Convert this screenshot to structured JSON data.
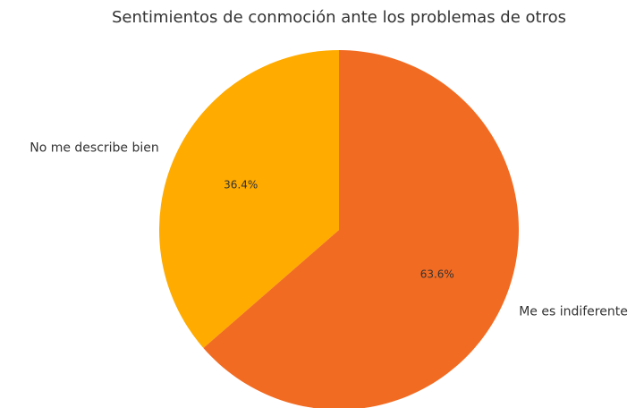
{
  "chart_data": {
    "type": "pie",
    "title": "Sentimientos de conmoción ante los problemas de otros",
    "categories": [
      "No me describe bien",
      "Me es indiferente"
    ],
    "values": [
      36.4,
      63.6
    ],
    "value_labels": [
      "36.4%",
      "63.6%"
    ],
    "colors": [
      "#ffab00",
      "#f26b22"
    ]
  }
}
